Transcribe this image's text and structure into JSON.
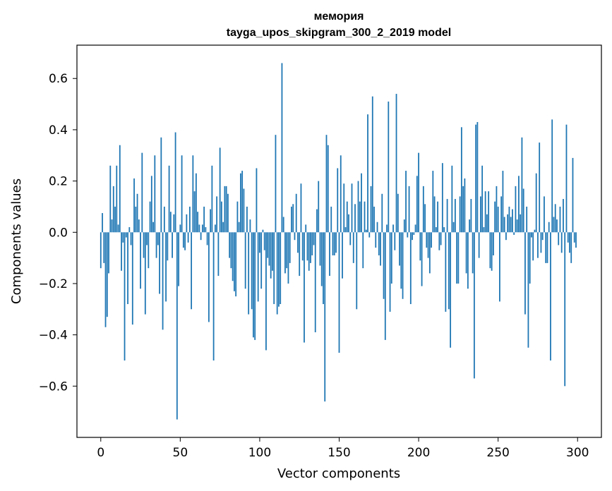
{
  "chart_data": {
    "type": "bar",
    "title": "мемория",
    "subtitle": "tayga_upos_skipgram_300_2_2019 model",
    "xlabel": "Vector components",
    "ylabel": "Components values",
    "xlim": [
      -15,
      315
    ],
    "ylim": [
      -0.8,
      0.73
    ],
    "xticks": [
      0,
      50,
      100,
      150,
      200,
      250,
      300
    ],
    "xtick_labels": [
      "0",
      "50",
      "100",
      "150",
      "200",
      "250",
      "300"
    ],
    "yticks": [
      -0.6,
      -0.4,
      -0.2,
      0.0,
      0.2,
      0.4,
      0.6
    ],
    "ytick_labels": [
      "−0.6",
      "−0.4",
      "−0.2",
      "0.0",
      "0.2",
      "0.4",
      "0.6"
    ],
    "grid": false,
    "bar_color": "#1f77b4",
    "series": [
      {
        "name": "components",
        "x": "0..299",
        "values": [
          -0.14,
          0.075,
          -0.12,
          -0.37,
          -0.33,
          -0.16,
          0.26,
          0.05,
          0.18,
          0.1,
          0.26,
          0.03,
          0.34,
          -0.15,
          -0.04,
          -0.5,
          -0.02,
          -0.28,
          0.02,
          -0.05,
          -0.36,
          0.21,
          0.1,
          0.15,
          0.05,
          -0.22,
          0.31,
          -0.1,
          -0.32,
          -0.05,
          -0.14,
          0.12,
          0.22,
          0.04,
          0.3,
          -0.1,
          -0.05,
          -0.24,
          0.37,
          -0.38,
          0.1,
          -0.27,
          -0.11,
          0.26,
          0.08,
          -0.1,
          0.07,
          0.39,
          -0.73,
          -0.21,
          0.03,
          0.3,
          -0.06,
          -0.07,
          0.07,
          -0.04,
          0.1,
          -0.3,
          0.3,
          0.16,
          0.23,
          0.08,
          0.03,
          -0.03,
          0.03,
          0.1,
          0.02,
          -0.05,
          -0.35,
          0.09,
          0.26,
          -0.5,
          0.03,
          0.14,
          -0.17,
          0.33,
          0.12,
          0.04,
          0.18,
          0.18,
          0.15,
          -0.1,
          -0.14,
          -0.19,
          -0.23,
          -0.25,
          0.12,
          0.04,
          0.23,
          0.24,
          0.17,
          -0.22,
          0.1,
          -0.32,
          0.05,
          -0.3,
          -0.41,
          -0.42,
          0.25,
          -0.27,
          -0.08,
          -0.22,
          0.01,
          -0.07,
          -0.46,
          -0.1,
          -0.13,
          -0.18,
          -0.15,
          -0.28,
          0.38,
          -0.32,
          -0.29,
          -0.28,
          0.66,
          0.06,
          -0.16,
          -0.14,
          -0.2,
          -0.12,
          0.1,
          0.11,
          -0.03,
          0.15,
          -0.08,
          -0.17,
          0.19,
          -0.11,
          -0.43,
          0.03,
          -0.11,
          -0.15,
          -0.12,
          -0.09,
          -0.05,
          -0.39,
          0.09,
          0.2,
          -0.13,
          -0.21,
          -0.28,
          -0.66,
          0.38,
          0.34,
          -0.17,
          0.1,
          -0.09,
          -0.09,
          -0.08,
          0.25,
          -0.47,
          0.3,
          -0.18,
          0.19,
          0.02,
          0.12,
          0.07,
          -0.05,
          0.19,
          -0.12,
          0.11,
          -0.3,
          0.2,
          0.12,
          0.23,
          -0.14,
          0.12,
          0.01,
          0.46,
          -0.02,
          0.18,
          0.53,
          0.1,
          -0.06,
          0.04,
          -0.09,
          -0.13,
          0.15,
          -0.26,
          -0.42,
          0.03,
          0.51,
          -0.31,
          -0.2,
          0.03,
          -0.07,
          0.54,
          0.15,
          -0.13,
          -0.22,
          -0.26,
          0.05,
          0.24,
          -0.02,
          0.18,
          -0.28,
          -0.03,
          -0.01,
          0.03,
          0.22,
          0.31,
          -0.11,
          -0.21,
          0.18,
          0.11,
          -0.06,
          -0.1,
          -0.16,
          -0.06,
          0.24,
          0.14,
          0.02,
          0.12,
          -0.07,
          -0.05,
          0.27,
          0.02,
          -0.31,
          0.13,
          -0.3,
          -0.45,
          0.26,
          0.04,
          0.13,
          -0.2,
          -0.2,
          0.14,
          0.41,
          0.18,
          0.21,
          -0.16,
          -0.22,
          0.05,
          0.13,
          -0.16,
          -0.57,
          0.42,
          0.43,
          -0.1,
          0.14,
          0.26,
          0.02,
          0.16,
          0.07,
          0.16,
          -0.14,
          -0.15,
          -0.09,
          0.12,
          0.18,
          0.1,
          -0.27,
          0.14,
          0.24,
          0.06,
          -0.03,
          0.07,
          0.1,
          0.06,
          0.09,
          -0.01,
          0.18,
          0.05,
          0.22,
          0.07,
          0.37,
          0.17,
          -0.32,
          0.1,
          -0.45,
          -0.2,
          -0.02,
          -0.11,
          0.01,
          0.23,
          -0.1,
          0.35,
          -0.08,
          -0.03,
          0.14,
          -0.12,
          -0.12,
          0.04,
          -0.5,
          0.44,
          0.06,
          0.11,
          0.05,
          -0.05,
          0.1,
          -0.08,
          0.13,
          -0.6,
          0.42,
          -0.04,
          -0.08,
          -0.12,
          0.29,
          -0.04,
          -0.06
        ]
      }
    ]
  }
}
